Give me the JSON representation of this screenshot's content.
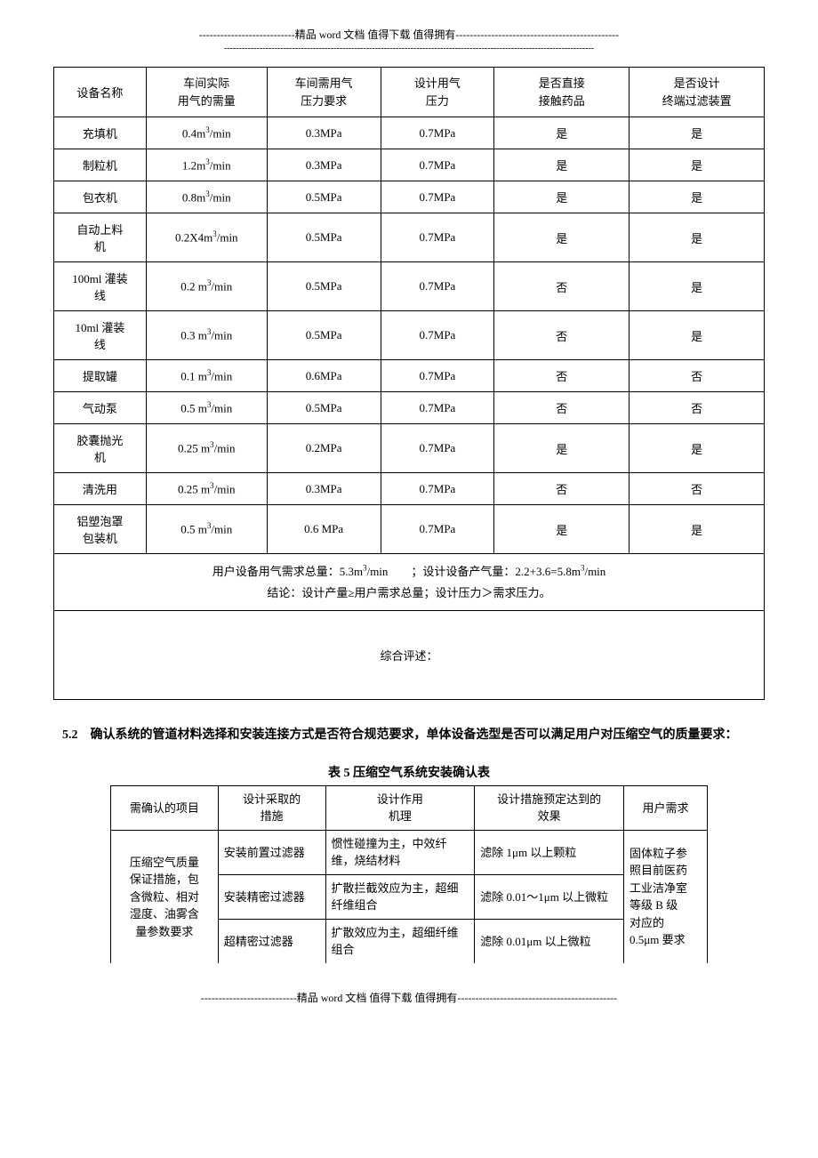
{
  "header": {
    "line1": "---------------------------精品 word 文档  值得下载  值得拥有----------------------------------------------",
    "line2": "-----------------------------------------------------------------------------------------------------------------------------"
  },
  "footer": {
    "line1": "---------------------------精品 word 文档  值得下载  值得拥有---------------------------------------------"
  },
  "table1": {
    "headers": {
      "col1": "设备名称",
      "col2a": "车间实际",
      "col2b": "用气的需量",
      "col3a": "车间需用气",
      "col3b": "压力要求",
      "col4a": "设计用气",
      "col4b": "压力",
      "col5a": "是否直接",
      "col5b": "接触药品",
      "col6a": "是否设计",
      "col6b": "终端过滤装置"
    },
    "rows": [
      {
        "name": "充填机",
        "demand": "0.4m³/min",
        "reqPressure": "0.3MPa",
        "designPressure": "0.7MPa",
        "contact": "是",
        "filter": "是"
      },
      {
        "name": "制粒机",
        "demand": "1.2m³/min",
        "reqPressure": "0.3MPa",
        "designPressure": "0.7MPa",
        "contact": "是",
        "filter": "是"
      },
      {
        "name": "包衣机",
        "demand": "0.8m³/min",
        "reqPressure": "0.5MPa",
        "designPressure": "0.7MPa",
        "contact": "是",
        "filter": "是"
      },
      {
        "name": "自动上料机",
        "demand": "0.2X4m³/min",
        "reqPressure": "0.5MPa",
        "designPressure": "0.7MPa",
        "contact": "是",
        "filter": "是"
      },
      {
        "name": "100ml 灌装线",
        "demand": "0.2 m³/min",
        "reqPressure": "0.5MPa",
        "designPressure": "0.7MPa",
        "contact": "否",
        "filter": "是"
      },
      {
        "name": "10ml 灌装线",
        "demand": "0.3 m³/min",
        "reqPressure": "0.5MPa",
        "designPressure": "0.7MPa",
        "contact": "否",
        "filter": "是"
      },
      {
        "name": "提取罐",
        "demand": "0.1 m³/min",
        "reqPressure": "0.6MPa",
        "designPressure": "0.7MPa",
        "contact": "否",
        "filter": "否"
      },
      {
        "name": "气动泵",
        "demand": "0.5 m³/min",
        "reqPressure": "0.5MPa",
        "designPressure": "0.7MPa",
        "contact": "否",
        "filter": "否"
      },
      {
        "name": "胶囊抛光机",
        "demand": "0.25 m³/min",
        "reqPressure": "0.2MPa",
        "designPressure": "0.7MPa",
        "contact": "是",
        "filter": "是"
      },
      {
        "name": "清洗用",
        "demand": "0.25 m³/min",
        "reqPressure": "0.3MPa",
        "designPressure": "0.7MPa",
        "contact": "否",
        "filter": "否"
      },
      {
        "name": "铝塑泡罩包装机",
        "demand": "0.5 m³/min",
        "reqPressure": "0.6 MPa",
        "designPressure": "0.7MPa",
        "contact": "是",
        "filter": "是"
      }
    ],
    "summary": {
      "line1": "用户设备用气需求总量：5.3m³/min　　；设计设备产气量：2.2+3.6=5.8m³/min",
      "line2": "结论：设计产量≥用户需求总量；设计压力＞需求压力。"
    },
    "comment": "综合评述："
  },
  "section52": {
    "heading": "5.2　确认系统的管道材料选择和安装连接方式是否符合规范要求，单体设备选型是否可以满足用户对压缩空气的质量要求："
  },
  "table5": {
    "caption": "表 5 压缩空气系统安装确认表",
    "headers": {
      "col1": "需确认的项目",
      "col2a": "设计采取的",
      "col2b": "措施",
      "col3a": "设计作用",
      "col3b": "机理",
      "col4a": "设计措施预定达到的",
      "col4b": "效果",
      "col5": "用户需求"
    },
    "itemCol": {
      "l1": "压缩空气质量",
      "l2": "保证措施，包",
      "l3": "含微粒、相对",
      "l4": "湿度、油雾含",
      "l5": "量参数要求"
    },
    "rows": [
      {
        "measure": "安装前置过滤器",
        "mechanism": "惯性碰撞为主，中效纤维，烧结材料",
        "effect": "滤除 1μm 以上颗粒"
      },
      {
        "measure": "安装精密过滤器",
        "mechanism": "扩散拦截效应为主，超细纤维组合",
        "effect": "滤除 0.01～1μm 以上微粒"
      },
      {
        "measure": "超精密过滤器",
        "mechanism": "扩散效应为主，超细纤维组合",
        "effect": "滤除 0.01μm 以上微粒"
      }
    ],
    "userReq": {
      "l1": "固体粒子参",
      "l2": "照目前医药",
      "l3": "工业洁净室",
      "l4": "等级 B 级",
      "l5": "对应的",
      "l6": "0.5μm 要求"
    }
  },
  "columnWidths": {
    "table1": [
      "13%",
      "17%",
      "16%",
      "16%",
      "19%",
      "19%"
    ],
    "table5": [
      "18%",
      "18%",
      "25%",
      "25%",
      "14%"
    ]
  }
}
